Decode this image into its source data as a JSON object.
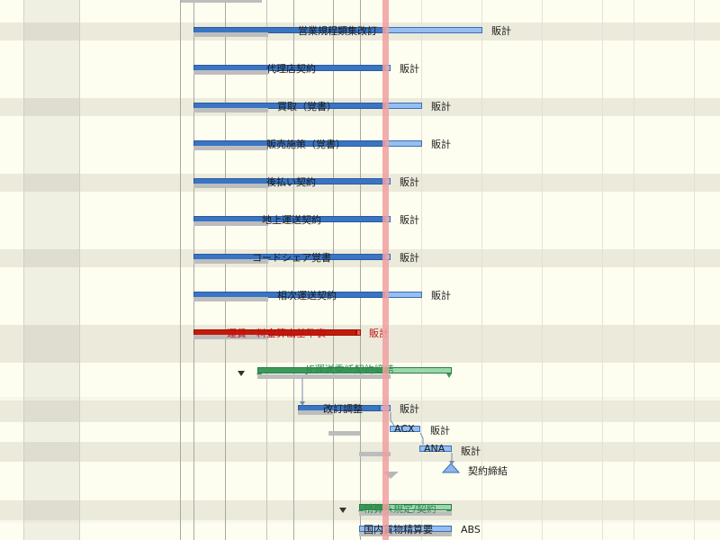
{
  "gantt": {
    "rows": [
      {
        "name": "営業規程類集改訂",
        "resource": "販計",
        "progress": 100
      },
      {
        "name": "代理店契約",
        "resource": "販計",
        "progress": 100
      },
      {
        "name": "買取（覚書）",
        "resource": "販計",
        "progress": 100
      },
      {
        "name": "販売施策（覚書）",
        "resource": "販計",
        "progress": 100
      },
      {
        "name": "後払い契約",
        "resource": "販計",
        "progress": 100
      },
      {
        "name": "地上運送契約",
        "resource": "販計",
        "progress": 100
      },
      {
        "name": "コードシェア覚書",
        "resource": "販計",
        "progress": 100
      },
      {
        "name": "相次運送契約",
        "resource": "販計",
        "progress": 100
      },
      {
        "name": "運賃・料金算出基準表",
        "resource": "販計",
        "status_color": "#c51a0a"
      },
      {
        "name": "JF運送委託契約締結",
        "summary": true
      },
      {
        "name": "改訂調整",
        "resource": "販計"
      },
      {
        "name": "ACX",
        "resource": "販計"
      },
      {
        "name": "ANA",
        "resource": "販計"
      },
      {
        "name": "契約締結",
        "milestone": true
      },
      {
        "name": "精算系規定/契約",
        "summary": true
      },
      {
        "name": "国内貨物精算要",
        "resource": "ABS"
      }
    ],
    "colors": {
      "task": "#3a75c4",
      "remaining": "#95bff0",
      "critical": "#c51a0a",
      "summary": "#3a9a5a",
      "baseline": "#bdbdbd",
      "today": "#f0a0a0"
    },
    "icons": {
      "collapse": "triangle-down-icon",
      "milestone": "diamond-icon"
    }
  }
}
